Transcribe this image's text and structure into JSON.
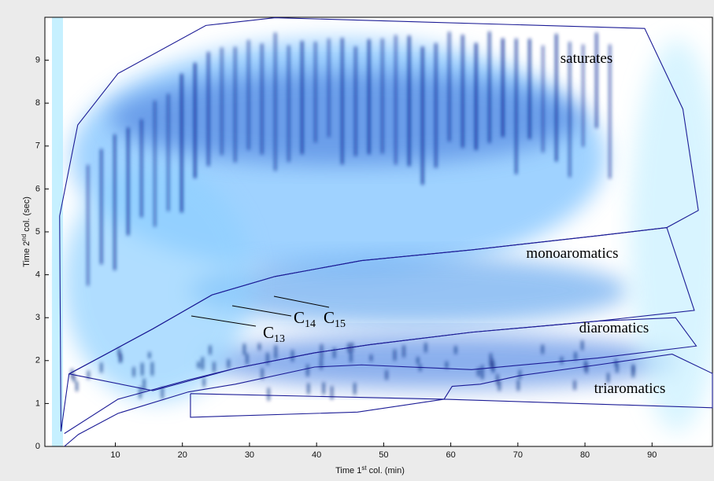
{
  "chart_data": {
    "type": "chromatogram2d",
    "xlabel": [
      "Time 1",
      "st",
      " col. (min)"
    ],
    "ylabel": [
      "Time 2",
      "nd",
      " col. (sec)"
    ],
    "xlim": [
      -0.5,
      99
    ],
    "ylim": [
      0,
      10
    ],
    "xticks": [
      10,
      20,
      30,
      40,
      50,
      60,
      70,
      80,
      90
    ],
    "yticks": [
      0,
      1,
      2,
      3,
      4,
      5,
      6,
      7,
      8,
      9
    ],
    "outline_color": "#1c1c96",
    "regions": [
      {
        "name": "saturates",
        "x": [
          1.7,
          4.4,
          10.4,
          23.5,
          33.8,
          88.9,
          94.6,
          96.9,
          92.2,
          81.9,
          63.1,
          46.7,
          33.8,
          24.4,
          15.6,
          8.6,
          3.1,
          1.9,
          1.7
        ],
        "y": [
          5.37,
          7.49,
          8.69,
          9.81,
          9.99,
          9.74,
          7.86,
          5.5,
          5.1,
          4.91,
          4.58,
          4.33,
          3.96,
          3.53,
          2.74,
          2.15,
          1.69,
          0.35,
          5.37
        ]
      },
      {
        "name": "monoaromatics",
        "x": [
          3.1,
          8.6,
          15.6,
          24.4,
          33.8,
          46.7,
          63.1,
          81.9,
          92.2,
          96.3,
          81.9,
          63.1,
          47.9,
          39.7,
          27.9,
          15.6,
          3.1
        ],
        "y": [
          1.69,
          2.15,
          2.74,
          3.53,
          3.96,
          4.33,
          4.58,
          4.91,
          5.1,
          3.17,
          2.92,
          2.66,
          2.37,
          2.18,
          1.82,
          1.3,
          1.69
        ]
      },
      {
        "name": "diaromatics",
        "x": [
          2.4,
          10.4,
          20.9,
          27.9,
          39.7,
          47.9,
          63.1,
          81.9,
          93.5,
          96.6,
          81.9,
          63.1,
          46.7,
          39.7,
          27.9,
          20.9,
          10.4,
          4.5,
          2.4
        ],
        "y": [
          0.3,
          1.1,
          1.55,
          1.82,
          2.18,
          2.37,
          2.66,
          2.92,
          3.0,
          2.34,
          2.06,
          1.79,
          1.9,
          1.85,
          1.45,
          1.27,
          0.77,
          0.28,
          0
        ]
      },
      {
        "name": "triaromatics",
        "x": [
          21.2,
          21.2,
          46.1,
          59,
          60.2,
          64.4,
          70.3,
          81.9,
          93,
          99,
          99,
          59,
          21.2
        ],
        "y": [
          1.23,
          0.68,
          0.8,
          1.1,
          1.4,
          1.45,
          1.65,
          1.9,
          2.15,
          1.7,
          0.9,
          1.1,
          1.23
        ]
      }
    ],
    "annotations": [
      {
        "base": "C",
        "sub": "13"
      },
      {
        "base": "C",
        "sub": "14"
      },
      {
        "base": "C",
        "sub": "15"
      }
    ]
  }
}
